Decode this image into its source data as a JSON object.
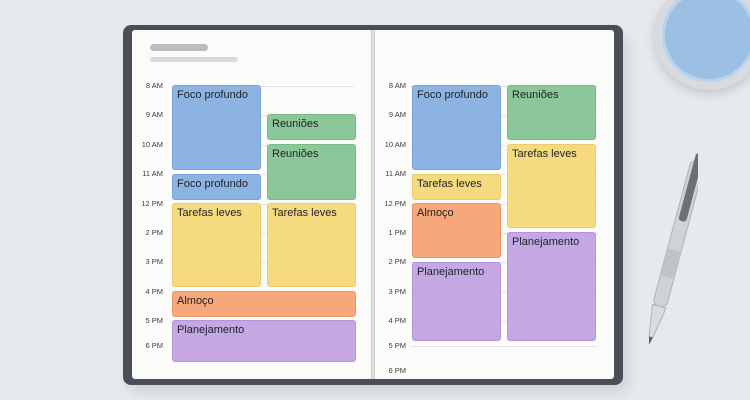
{
  "left_page": {
    "times": [
      "8 AM",
      "9 AM",
      "10 AM",
      "11 AM",
      "12 PM",
      "2 PM",
      "3 PM",
      "4 PM",
      "5 PM",
      "6 PM"
    ],
    "events": [
      {
        "label": "Foco profundo",
        "color": "blue"
      },
      {
        "label": "Reuniões",
        "color": "green"
      },
      {
        "label": "Reuniões",
        "color": "green"
      },
      {
        "label": "Foco profundo",
        "color": "blue"
      },
      {
        "label": "Tarefas leves",
        "color": "yellow"
      },
      {
        "label": "Tarefas leves",
        "color": "yellow"
      },
      {
        "label": "Almoço",
        "color": "orange"
      },
      {
        "label": "Planejamento",
        "color": "purple"
      }
    ]
  },
  "right_page": {
    "times": [
      "8 AM",
      "9 AM",
      "10 AM",
      "11 AM",
      "12 PM",
      "1 PM",
      "2 PM",
      "3 PM",
      "4 PM",
      "5 PM",
      "6 PM"
    ],
    "events": [
      {
        "label": "Foco profundo",
        "color": "blue"
      },
      {
        "label": "Reuniões",
        "color": "green"
      },
      {
        "label": "Tarefas leves",
        "color": "yellow"
      },
      {
        "label": "Tarefas leves",
        "color": "yellow"
      },
      {
        "label": "Almoço",
        "color": "orange"
      },
      {
        "label": "Planejamento",
        "color": "purple"
      },
      {
        "label": "Planejamento",
        "color": "purple"
      }
    ]
  },
  "colors": {
    "blue": "#8db3e2",
    "green": "#8cc799",
    "yellow": "#f6da80",
    "orange": "#f6a77b",
    "purple": "#c4a7e3"
  },
  "objects": [
    "coffee-cup",
    "pen"
  ]
}
